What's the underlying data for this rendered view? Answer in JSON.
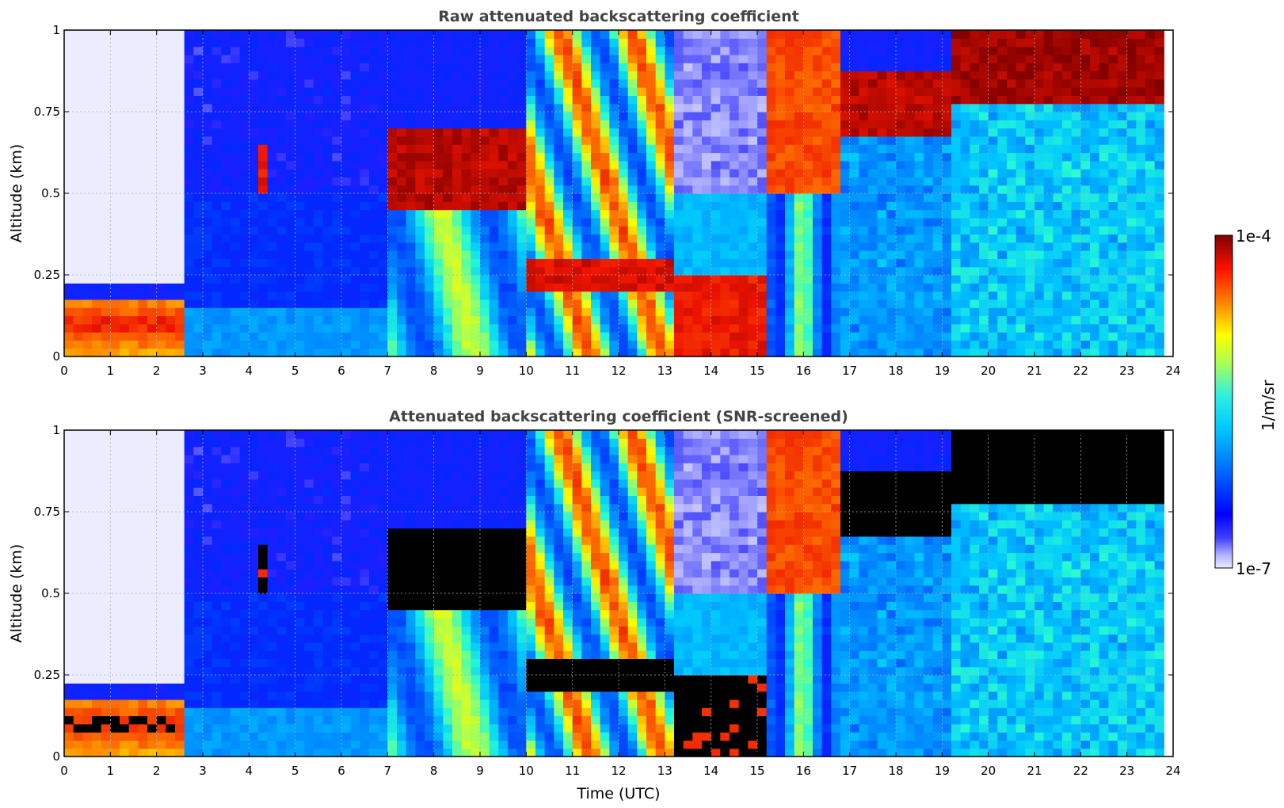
{
  "chart_data": [
    {
      "type": "heatmap",
      "title": "Raw attenuated backscattering coefficient",
      "xlabel": "",
      "ylabel": "Altitude (km)",
      "xlim": [
        0,
        24
      ],
      "ylim": [
        0,
        1
      ],
      "xticks": [
        "0",
        "1",
        "2",
        "3",
        "4",
        "5",
        "6",
        "7",
        "8",
        "9",
        "10",
        "11",
        "12",
        "13",
        "14",
        "15",
        "16",
        "17",
        "18",
        "19",
        "20",
        "21",
        "22",
        "23",
        "24"
      ],
      "yticks": [
        "0",
        "0.25",
        "0.5",
        "0.75",
        "1"
      ],
      "grid": true,
      "colorscale": "jet",
      "screened": false
    },
    {
      "type": "heatmap",
      "title": "Attenuated backscattering coefficient (SNR-screened)",
      "xlabel": "Time (UTC)",
      "ylabel": "Altitude (km)",
      "xlim": [
        0,
        24
      ],
      "ylim": [
        0,
        1
      ],
      "xticks": [
        "0",
        "1",
        "2",
        "3",
        "4",
        "5",
        "6",
        "7",
        "8",
        "9",
        "10",
        "11",
        "12",
        "13",
        "14",
        "15",
        "16",
        "17",
        "18",
        "19",
        "20",
        "21",
        "22",
        "23",
        "24"
      ],
      "yticks": [
        "0",
        "0.25",
        "0.5",
        "0.75",
        "1"
      ],
      "grid": true,
      "colorscale": "jet",
      "screened": true,
      "saturation_color": "#000000"
    }
  ],
  "colorbar": {
    "label": "1/m/sr",
    "max_label": "1e-4",
    "min_label": "1e-7",
    "scale": "log",
    "range": [
      1e-07,
      0.0001
    ]
  }
}
